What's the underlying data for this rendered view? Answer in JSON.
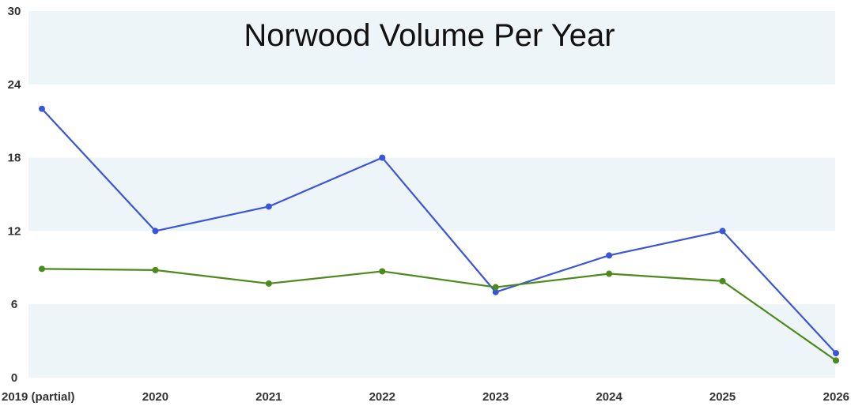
{
  "chart_data": {
    "type": "line",
    "title": "Norwood Volume Per Year",
    "xlabel": "",
    "ylabel": "",
    "categories": [
      "2019 (partial)",
      "2020",
      "2021",
      "2022",
      "2023",
      "2024",
      "2025",
      "2026"
    ],
    "ylim": [
      0,
      30
    ],
    "yticks": [
      0,
      6,
      12,
      18,
      24,
      30
    ],
    "grid": "alternating horizontal bands",
    "legend": "none",
    "series": [
      {
        "values": [
          22,
          12,
          14,
          18,
          7,
          10,
          12,
          2
        ],
        "color": "#3b55d9"
      },
      {
        "values": [
          8.9,
          8.8,
          7.7,
          8.7,
          7.4,
          8.5,
          7.9,
          1.4
        ],
        "color": "#4c8a1c"
      }
    ],
    "band_color": "#edf5f8"
  }
}
